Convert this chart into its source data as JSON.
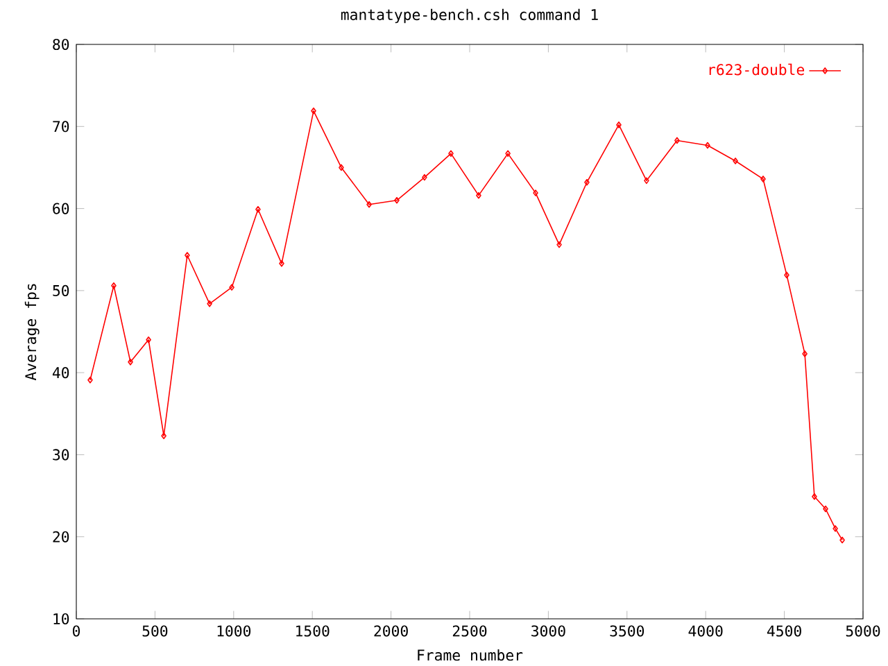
{
  "chart_data": {
    "type": "line",
    "title": "mantatype-bench.csh command 1",
    "xlabel": "Frame number",
    "ylabel": "Average fps",
    "x": [
      88,
      238,
      344,
      459,
      556,
      705,
      847,
      988,
      1155,
      1305,
      1508,
      1684,
      1861,
      2037,
      2213,
      2381,
      2557,
      2743,
      2919,
      3069,
      3245,
      3448,
      3624,
      3818,
      4012,
      4189,
      4365,
      4515,
      4630,
      4691,
      4762,
      4824,
      4868
    ],
    "series": [
      {
        "name": "r623-double",
        "color": "#ff0000",
        "values": [
          39.1,
          50.6,
          41.3,
          44.0,
          32.3,
          54.3,
          48.4,
          50.4,
          59.9,
          53.3,
          71.9,
          65.0,
          60.5,
          61.0,
          63.8,
          66.7,
          61.6,
          66.7,
          61.9,
          55.6,
          63.2,
          70.2,
          63.4,
          68.3,
          67.7,
          65.8,
          63.6,
          51.9,
          42.3,
          24.9,
          23.4,
          21.0,
          19.6
        ]
      }
    ],
    "xlim": [
      0,
      5000
    ],
    "ylim": [
      10,
      80
    ],
    "xticks": [
      0,
      500,
      1000,
      1500,
      2000,
      2500,
      3000,
      3500,
      4000,
      4500,
      5000
    ],
    "yticks": [
      10,
      20,
      30,
      40,
      50,
      60,
      70,
      80
    ],
    "grid": false,
    "legend": "top right",
    "marker": "diamond",
    "line_style": "solid"
  }
}
